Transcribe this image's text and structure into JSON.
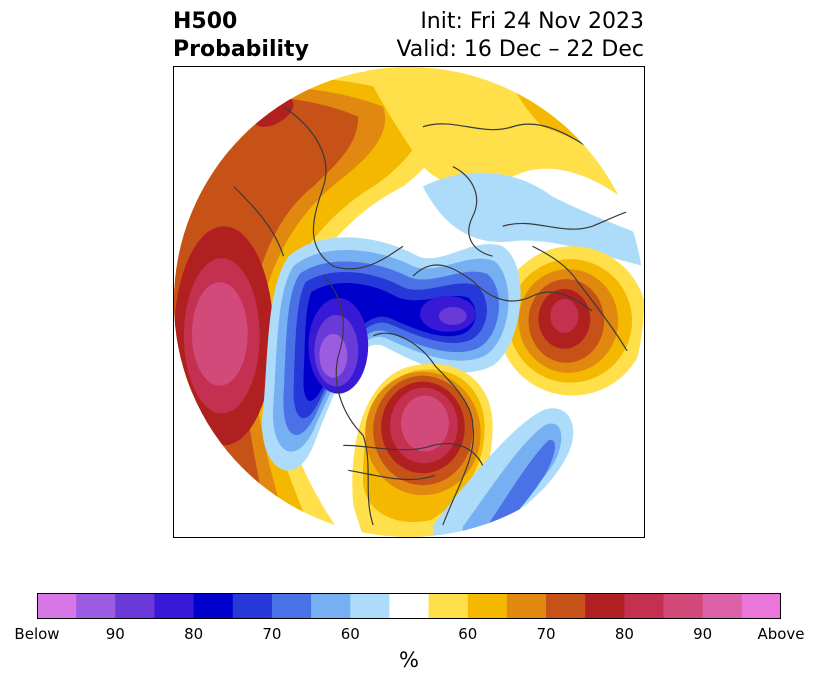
{
  "title": {
    "left_line1": "H500",
    "left_line2": "Probability",
    "right_line1": "Init: Fri 24 Nov 2023",
    "right_line2": "Valid: 16 Dec – 22 Dec"
  },
  "colorbar": {
    "colors": [
      "#d876e8",
      "#9c5ce2",
      "#6a3ad8",
      "#3719d6",
      "#0000cc",
      "#2638d8",
      "#4a72e6",
      "#76b0f2",
      "#acdcfa",
      "#ffffff",
      "#ffe04a",
      "#f4b800",
      "#e08810",
      "#c65218",
      "#b02020",
      "#c43050",
      "#d24a7a",
      "#dc62a8",
      "#ea76dc"
    ],
    "tick_labels": [
      "Below",
      "90",
      "80",
      "70",
      "60",
      "60",
      "70",
      "80",
      "90",
      "Above"
    ],
    "label": "%"
  },
  "map": {
    "projection": "polar stereographic (North Pole)",
    "region": "Northern Hemisphere"
  }
}
